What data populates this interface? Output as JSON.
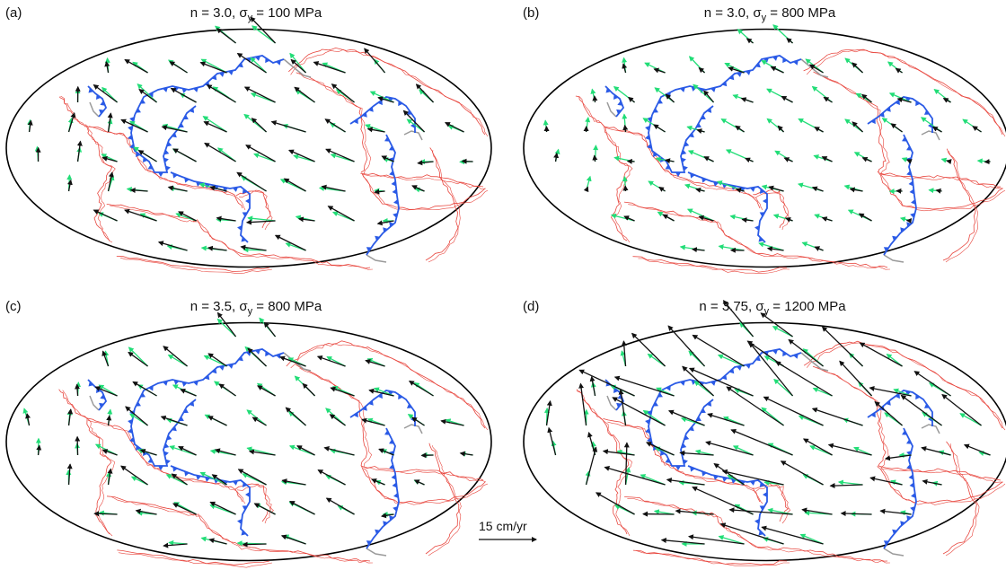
{
  "panels": [
    {
      "label": "(a)",
      "n": "3.0",
      "sigma": "100 MPa"
    },
    {
      "label": "(b)",
      "n": "3.0",
      "sigma": "800 MPa"
    },
    {
      "label": "(c)",
      "n": "3.5",
      "sigma": "800 MPa"
    },
    {
      "label": "(d)",
      "n": "3.75",
      "sigma": "1200 MPa"
    }
  ],
  "title_prefix": "n = ",
  "sigma_symbol": "σ",
  "sigma_subscript": "y",
  "scale_label": "15 cm/yr",
  "colors": {
    "boundary": "#e8473f",
    "subduction": "#2a5ae6",
    "other_boundary": "#9a9a9a",
    "model_arrow": "#111111",
    "observed_arrow": "#22dd77"
  }
}
